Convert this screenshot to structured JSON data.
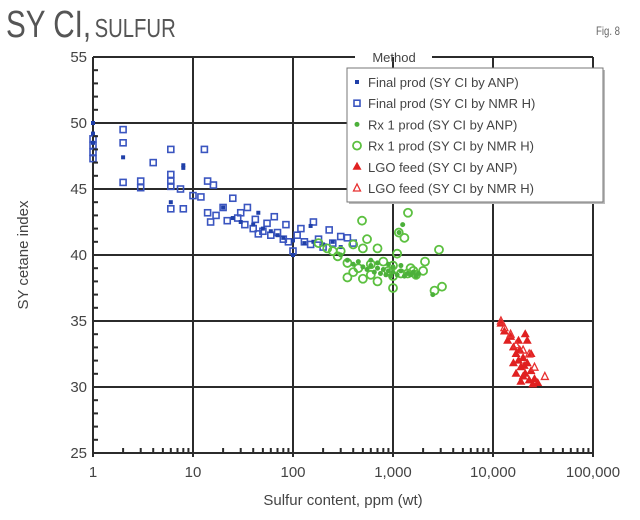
{
  "header": {
    "title_main": "SY CI,",
    "title_sub": "SULFUR",
    "figure_label": "Fig. 8"
  },
  "chart_data": {
    "type": "scatter",
    "title": "SY CI, SULFUR",
    "xlabel": "Sulfur content, ppm (wt)",
    "ylabel": "SY cetane index",
    "xscale": "log",
    "xlim": [
      1,
      100000
    ],
    "ylim": [
      25,
      55
    ],
    "x_ticks": [
      1,
      10,
      100,
      1000,
      10000,
      100000
    ],
    "x_tick_labels": [
      "1",
      "10",
      "100",
      "1,000",
      "10,000",
      "100,000"
    ],
    "y_ticks": [
      25,
      30,
      35,
      40,
      45,
      50,
      55
    ],
    "y_tick_labels": [
      "25",
      "30",
      "35",
      "40",
      "45",
      "50",
      "55"
    ],
    "grid": true,
    "legend_title": "Method",
    "legend_position": "top-right",
    "series": [
      {
        "name": "Final prod (SY CI by ANP)",
        "color": "#1f3fa8",
        "marker": "square-filled",
        "points": [
          [
            1,
            50
          ],
          [
            1,
            49.2
          ],
          [
            1,
            48.5
          ],
          [
            2,
            47.4
          ],
          [
            6,
            44
          ],
          [
            8,
            46.6
          ],
          [
            8,
            46.8
          ],
          [
            20,
            43.6
          ],
          [
            25,
            42.8
          ],
          [
            30,
            42.5
          ],
          [
            40,
            42.3
          ],
          [
            45,
            43.2
          ],
          [
            50,
            42
          ],
          [
            60,
            41.8
          ],
          [
            70,
            41.5
          ],
          [
            80,
            41.3
          ],
          [
            100,
            41.1
          ],
          [
            100,
            40
          ],
          [
            130,
            40.9
          ],
          [
            150,
            42.2
          ],
          [
            160,
            41
          ],
          [
            200,
            40.8
          ],
          [
            250,
            41
          ],
          [
            300,
            40.6
          ]
        ]
      },
      {
        "name": "Final prod (SY CI by NMR H)",
        "color": "#3a55c0",
        "marker": "square-open",
        "points": [
          [
            1,
            48.8
          ],
          [
            1,
            48.3
          ],
          [
            1,
            47.8
          ],
          [
            1,
            47.3
          ],
          [
            2,
            49.5
          ],
          [
            2,
            48.5
          ],
          [
            2,
            45.5
          ],
          [
            3,
            45.6
          ],
          [
            3,
            45.1
          ],
          [
            4,
            47
          ],
          [
            6,
            48
          ],
          [
            6,
            46.1
          ],
          [
            6,
            45.6
          ],
          [
            6,
            45.2
          ],
          [
            6,
            43.5
          ],
          [
            7.5,
            45
          ],
          [
            8,
            43.5
          ],
          [
            10,
            44.5
          ],
          [
            12,
            44.4
          ],
          [
            13,
            48
          ],
          [
            14,
            45.6
          ],
          [
            16,
            45.3
          ],
          [
            14,
            43.2
          ],
          [
            15,
            42.5
          ],
          [
            17,
            43
          ],
          [
            20,
            43.6
          ],
          [
            22,
            42.6
          ],
          [
            25,
            44.3
          ],
          [
            28,
            42.8
          ],
          [
            30,
            43.2
          ],
          [
            33,
            42.3
          ],
          [
            35,
            43.6
          ],
          [
            40,
            42
          ],
          [
            42,
            42.7
          ],
          [
            45,
            41.6
          ],
          [
            50,
            41.8
          ],
          [
            55,
            42.4
          ],
          [
            60,
            41.5
          ],
          [
            65,
            42.9
          ],
          [
            70,
            41.7
          ],
          [
            80,
            41.2
          ],
          [
            85,
            42.3
          ],
          [
            90,
            41
          ],
          [
            100,
            40.3
          ],
          [
            110,
            41.5
          ],
          [
            120,
            42
          ],
          [
            130,
            41
          ],
          [
            150,
            40.8
          ],
          [
            160,
            42.5
          ],
          [
            180,
            41.2
          ],
          [
            200,
            40.6
          ],
          [
            230,
            41.9
          ],
          [
            250,
            40.9
          ],
          [
            300,
            41.4
          ],
          [
            350,
            41.3
          ],
          [
            400,
            40.9
          ]
        ]
      },
      {
        "name": "Rx 1 prod (SY CI by ANP)",
        "color": "#4cb03a",
        "marker": "circle-filled",
        "points": [
          [
            300,
            40
          ],
          [
            350,
            39.6
          ],
          [
            400,
            39.3
          ],
          [
            450,
            39.5
          ],
          [
            500,
            39.1
          ],
          [
            550,
            38.9
          ],
          [
            600,
            39.2
          ],
          [
            650,
            38.7
          ],
          [
            700,
            39
          ],
          [
            750,
            38.6
          ],
          [
            800,
            38.9
          ],
          [
            850,
            38.5
          ],
          [
            900,
            38.8
          ],
          [
            950,
            38.4
          ],
          [
            1000,
            38.7
          ],
          [
            1100,
            38.5
          ],
          [
            1200,
            38.8
          ],
          [
            1300,
            38.4
          ],
          [
            1400,
            38.6
          ],
          [
            1500,
            38.5
          ],
          [
            1600,
            38.7
          ],
          [
            1700,
            38.4
          ],
          [
            1800,
            38.6
          ],
          [
            600,
            39.6
          ],
          [
            700,
            39.4
          ],
          [
            900,
            39.3
          ],
          [
            1000,
            39.1
          ],
          [
            1200,
            39.2
          ],
          [
            1150,
            41.7
          ],
          [
            1250,
            42.3
          ],
          [
            2500,
            37
          ]
        ]
      },
      {
        "name": "Rx 1 prod (SY CI by NMR H)",
        "color": "#5cc040",
        "marker": "circle-open",
        "points": [
          [
            180,
            40.9
          ],
          [
            220,
            40.5
          ],
          [
            250,
            40.3
          ],
          [
            280,
            39.9
          ],
          [
            300,
            40.3
          ],
          [
            350,
            39.4
          ],
          [
            400,
            40.8
          ],
          [
            450,
            39
          ],
          [
            490,
            42.6
          ],
          [
            500,
            40.5
          ],
          [
            500,
            38.2
          ],
          [
            550,
            41.2
          ],
          [
            600,
            39.3
          ],
          [
            600,
            38.5
          ],
          [
            700,
            40.5
          ],
          [
            700,
            38
          ],
          [
            800,
            39.5
          ],
          [
            900,
            38.8
          ],
          [
            1000,
            39.2
          ],
          [
            1000,
            38.4
          ],
          [
            1100,
            40.1
          ],
          [
            1143,
            41.7
          ],
          [
            1200,
            38.6
          ],
          [
            1300,
            41.3
          ],
          [
            1400,
            38.6
          ],
          [
            1412,
            43.2
          ],
          [
            1500,
            39
          ],
          [
            1600,
            38.8
          ],
          [
            1700,
            38.5
          ],
          [
            2000,
            38.8
          ],
          [
            2089,
            39.5
          ],
          [
            2600,
            37.3
          ],
          [
            2884,
            40.4
          ],
          [
            3090,
            37.6
          ],
          [
            1000,
            37.5
          ],
          [
            400,
            38.7
          ],
          [
            350,
            38.3
          ]
        ]
      },
      {
        "name": "LGO feed (SY CI by ANP)",
        "color": "#e02020",
        "marker": "triangle-filled",
        "points": [
          [
            12000,
            34.8
          ],
          [
            13000,
            34.2
          ],
          [
            14000,
            33.5
          ],
          [
            15000,
            33.8
          ],
          [
            16000,
            33
          ],
          [
            16000,
            31.8
          ],
          [
            17000,
            32.5
          ],
          [
            17000,
            31
          ],
          [
            18000,
            33.5
          ],
          [
            18000,
            32
          ],
          [
            19000,
            31.5
          ],
          [
            19000,
            30.4
          ],
          [
            20000,
            32.2
          ],
          [
            20000,
            30.8
          ],
          [
            21000,
            31
          ],
          [
            21000,
            34
          ],
          [
            22000,
            33.5
          ],
          [
            22000,
            31.8
          ],
          [
            23000,
            30.5
          ],
          [
            24000,
            31.2
          ],
          [
            24000,
            32.5
          ],
          [
            25000,
            30.2
          ],
          [
            26000,
            30.6
          ],
          [
            28000,
            30.3
          ],
          [
            18500,
            32.8
          ],
          [
            20500,
            31.6
          ]
        ]
      },
      {
        "name": "LGO feed (SY CI by NMR H)",
        "color": "#e83030",
        "marker": "triangle-open",
        "points": [
          [
            12000,
            35
          ],
          [
            13000,
            34.5
          ],
          [
            15000,
            34
          ],
          [
            17000,
            33.2
          ],
          [
            20000,
            32.8
          ],
          [
            23000,
            32.5
          ],
          [
            26000,
            31.5
          ],
          [
            33000,
            30.8
          ]
        ]
      }
    ]
  }
}
